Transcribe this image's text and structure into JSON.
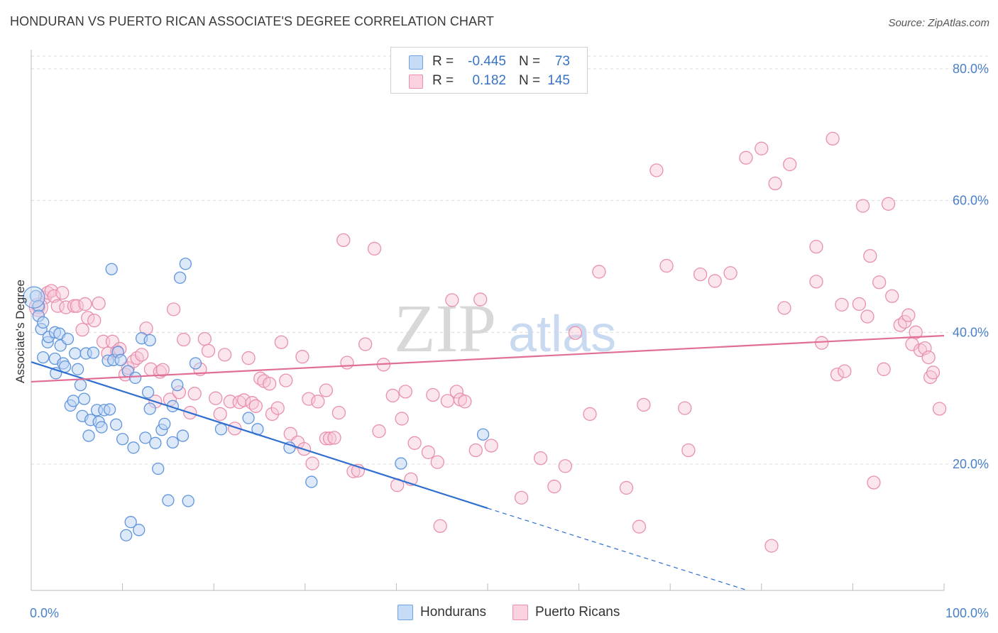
{
  "header": {
    "title": "HONDURAN VS PUERTO RICAN ASSOCIATE'S DEGREE CORRELATION CHART",
    "source": "Source: ZipAtlas.com"
  },
  "watermark": {
    "zip": "ZIP",
    "atlas": "atlas"
  },
  "legend": {
    "rows": [
      {
        "r_label": "R =",
        "r_value": "-0.445",
        "n_label": "N =",
        "n_value": "73",
        "color": "#6fa3e0",
        "fill": "#c5dbf6"
      },
      {
        "r_label": "R =",
        "r_value": "0.182",
        "n_label": "N =",
        "n_value": "145",
        "color": "#e890ad",
        "fill": "#fbd3e0"
      }
    ]
  },
  "bottom_legend": [
    {
      "label": "Hondurans",
      "color": "#6fa3e0",
      "fill": "#c5dbf6"
    },
    {
      "label": "Puerto Ricans",
      "color": "#e890ad",
      "fill": "#fbd3e0"
    }
  ],
  "chart_data": {
    "type": "scatter",
    "ylabel": "Associate's Degree",
    "xlabel": "",
    "x_tick_labels": [
      "0.0%",
      "100.0%"
    ],
    "y_tick_labels": [
      "20.0%",
      "40.0%",
      "60.0%",
      "80.0%"
    ],
    "y_ticks": [
      20,
      40,
      60,
      80
    ],
    "xlim": [
      0,
      100
    ],
    "ylim": [
      0,
      82
    ],
    "grid": true,
    "colors": {
      "honduran_line": "#2f6fd0",
      "puerto_rican_line": "#e06e98",
      "grid": "#dcdcdc"
    },
    "series": [
      {
        "name": "Hondurans",
        "trend": {
          "x0": 0,
          "y0": 35.5,
          "x1": 50,
          "y1": 13.3,
          "dashed_to_x": 100,
          "dashed_to_y": -8.6
        },
        "points": [
          [
            0.5,
            45.5
          ],
          [
            0.8,
            44
          ],
          [
            0.8,
            42.5
          ],
          [
            1.1,
            40.5
          ],
          [
            1.3,
            41.5
          ],
          [
            1.3,
            36.2
          ],
          [
            1.8,
            38.5
          ],
          [
            1.9,
            39.3
          ],
          [
            2.6,
            36
          ],
          [
            2.6,
            40
          ],
          [
            2.7,
            33.8
          ],
          [
            3.1,
            39.8
          ],
          [
            3.2,
            38
          ],
          [
            3.5,
            35.3
          ],
          [
            3.7,
            34.8
          ],
          [
            4.0,
            39
          ],
          [
            4.3,
            28.9
          ],
          [
            4.6,
            29.6
          ],
          [
            4.8,
            36.8
          ],
          [
            5.1,
            34.4
          ],
          [
            5.4,
            32
          ],
          [
            5.6,
            27.3
          ],
          [
            5.8,
            29.9
          ],
          [
            6.0,
            36.8
          ],
          [
            6.3,
            24.3
          ],
          [
            6.5,
            26.7
          ],
          [
            6.8,
            36.9
          ],
          [
            7.2,
            28.2
          ],
          [
            7.4,
            26.4
          ],
          [
            7.7,
            25.6
          ],
          [
            8.0,
            28.2
          ],
          [
            8.4,
            35.7
          ],
          [
            8.6,
            28.3
          ],
          [
            8.8,
            49.6
          ],
          [
            9.0,
            35.8
          ],
          [
            9.3,
            26
          ],
          [
            9.5,
            37
          ],
          [
            9.8,
            35.8
          ],
          [
            10.0,
            23.8
          ],
          [
            10.4,
            9.2
          ],
          [
            10.6,
            34.1
          ],
          [
            10.9,
            11.2
          ],
          [
            11.2,
            22.5
          ],
          [
            11.4,
            33.1
          ],
          [
            11.8,
            10
          ],
          [
            12.1,
            39.1
          ],
          [
            12.5,
            24
          ],
          [
            12.8,
            30.9
          ],
          [
            13.0,
            38.8
          ],
          [
            13.0,
            28.4
          ],
          [
            13.6,
            23.2
          ],
          [
            13.9,
            19.3
          ],
          [
            14.3,
            25.2
          ],
          [
            14.6,
            26.1
          ],
          [
            15.0,
            14.5
          ],
          [
            15.5,
            23.3
          ],
          [
            15.5,
            28.8
          ],
          [
            16.0,
            32
          ],
          [
            16.3,
            48.3
          ],
          [
            16.6,
            24.3
          ],
          [
            16.9,
            50.4
          ],
          [
            17.2,
            14.4
          ],
          [
            18.0,
            35.3
          ],
          [
            20.8,
            25.3
          ],
          [
            23.8,
            27
          ],
          [
            24.8,
            25.3
          ],
          [
            28.3,
            22.5
          ],
          [
            30.7,
            17.3
          ],
          [
            40.5,
            20.1
          ],
          [
            49.5,
            24.5
          ]
        ]
      },
      {
        "name": "Puerto Ricans",
        "trend": {
          "x0": 0,
          "y0": 32.5,
          "x1": 100,
          "y1": 39.5
        },
        "points": [
          [
            0.8,
            43.8
          ],
          [
            1.5,
            45.3
          ],
          [
            1.8,
            46
          ],
          [
            2.2,
            46.3
          ],
          [
            2.5,
            45.5
          ],
          [
            2.9,
            44
          ],
          [
            3.4,
            46
          ],
          [
            3.8,
            43.8
          ],
          [
            4.7,
            44
          ],
          [
            5.0,
            44
          ],
          [
            5.6,
            40.4
          ],
          [
            5.9,
            44.3
          ],
          [
            6.2,
            42.2
          ],
          [
            6.9,
            41.8
          ],
          [
            7.4,
            44.4
          ],
          [
            7.9,
            38.6
          ],
          [
            8.4,
            36.8
          ],
          [
            8.9,
            38.6
          ],
          [
            9.4,
            37.1
          ],
          [
            9.7,
            37.5
          ],
          [
            10.3,
            33.6
          ],
          [
            10.6,
            34.6
          ],
          [
            11.2,
            35.6
          ],
          [
            11.6,
            36.1
          ],
          [
            12.1,
            36.6
          ],
          [
            12.6,
            40.6
          ],
          [
            13.1,
            34.4
          ],
          [
            13.6,
            29.5
          ],
          [
            14.1,
            34
          ],
          [
            14.4,
            34.3
          ],
          [
            15.2,
            29.8
          ],
          [
            15.6,
            43.5
          ],
          [
            16.2,
            30.9
          ],
          [
            16.7,
            38.9
          ],
          [
            17.4,
            27.8
          ],
          [
            17.9,
            30.7
          ],
          [
            18.5,
            34.4
          ],
          [
            19.0,
            39
          ],
          [
            19.4,
            37.2
          ],
          [
            20.2,
            30
          ],
          [
            20.7,
            27.6
          ],
          [
            21.2,
            36.6
          ],
          [
            21.8,
            29.5
          ],
          [
            22.3,
            25.4
          ],
          [
            22.8,
            29.4
          ],
          [
            23.3,
            29.7
          ],
          [
            23.8,
            36.1
          ],
          [
            24.2,
            29.3
          ],
          [
            24.6,
            28.8
          ],
          [
            25.1,
            33
          ],
          [
            25.5,
            32.6
          ],
          [
            26.1,
            32.2
          ],
          [
            26.4,
            27.6
          ],
          [
            27.0,
            28.5
          ],
          [
            27.4,
            38.5
          ],
          [
            27.9,
            32.7
          ],
          [
            28.4,
            24.6
          ],
          [
            29.2,
            23.3
          ],
          [
            29.7,
            36.3
          ],
          [
            29.9,
            22.3
          ],
          [
            30.4,
            29.9
          ],
          [
            30.8,
            20.1
          ],
          [
            31.4,
            29.5
          ],
          [
            32.3,
            23.9
          ],
          [
            32.3,
            31.2
          ],
          [
            32.7,
            23.9
          ],
          [
            33.2,
            24
          ],
          [
            33.7,
            27.8
          ],
          [
            34.2,
            54
          ],
          [
            34.6,
            35.4
          ],
          [
            35.3,
            18.9
          ],
          [
            35.8,
            19
          ],
          [
            36.6,
            38.2
          ],
          [
            37.6,
            52.7
          ],
          [
            38.1,
            25
          ],
          [
            38.6,
            35.1
          ],
          [
            39.6,
            30.4
          ],
          [
            40.1,
            16.8
          ],
          [
            40.6,
            26.9
          ],
          [
            41.0,
            31
          ],
          [
            41.6,
            17.7
          ],
          [
            42.0,
            23.2
          ],
          [
            43.5,
            21.8
          ],
          [
            44.0,
            30.5
          ],
          [
            44.5,
            20.3
          ],
          [
            44.8,
            10.6
          ],
          [
            45.6,
            29.6
          ],
          [
            46.1,
            44.9
          ],
          [
            46.6,
            31
          ],
          [
            47.0,
            29.8
          ],
          [
            47.5,
            29.5
          ],
          [
            48.7,
            22.1
          ],
          [
            49.2,
            45
          ],
          [
            50.4,
            22.8
          ],
          [
            53.7,
            14.9
          ],
          [
            55.8,
            20.9
          ],
          [
            57.3,
            16.6
          ],
          [
            58.5,
            19.7
          ],
          [
            59.6,
            39.9
          ],
          [
            61.2,
            27.6
          ],
          [
            62.2,
            49.2
          ],
          [
            65.2,
            16.4
          ],
          [
            66.6,
            10.5
          ],
          [
            67.1,
            29
          ],
          [
            68.5,
            64.6
          ],
          [
            69.6,
            50.1
          ],
          [
            71.6,
            28.5
          ],
          [
            72.0,
            22.1
          ],
          [
            73.3,
            48.8
          ],
          [
            74.9,
            47.8
          ],
          [
            76.6,
            49
          ],
          [
            78.3,
            66.5
          ],
          [
            80.0,
            67.9
          ],
          [
            81.1,
            7.6
          ],
          [
            81.5,
            62.6
          ],
          [
            82.5,
            43.7
          ],
          [
            83.1,
            65.5
          ],
          [
            86.0,
            53
          ],
          [
            86.0,
            47.7
          ],
          [
            86.6,
            38.4
          ],
          [
            87.8,
            69.4
          ],
          [
            88.3,
            33.6
          ],
          [
            88.8,
            44.2
          ],
          [
            89.1,
            34.1
          ],
          [
            90.7,
            44.3
          ],
          [
            91.1,
            59.2
          ],
          [
            91.6,
            42.4
          ],
          [
            91.9,
            51.6
          ],
          [
            92.3,
            17.2
          ],
          [
            92.9,
            47.6
          ],
          [
            93.4,
            34.4
          ],
          [
            93.9,
            59.5
          ],
          [
            94.3,
            45.5
          ],
          [
            95.2,
            41.1
          ],
          [
            95.7,
            41.6
          ],
          [
            96.1,
            42.6
          ],
          [
            96.5,
            38.2
          ],
          [
            96.9,
            40
          ],
          [
            97.4,
            37.3
          ],
          [
            97.9,
            37.6
          ],
          [
            98.3,
            36.2
          ],
          [
            98.5,
            33.2
          ],
          [
            98.8,
            33.9
          ],
          [
            99.5,
            28.4
          ]
        ]
      }
    ]
  }
}
